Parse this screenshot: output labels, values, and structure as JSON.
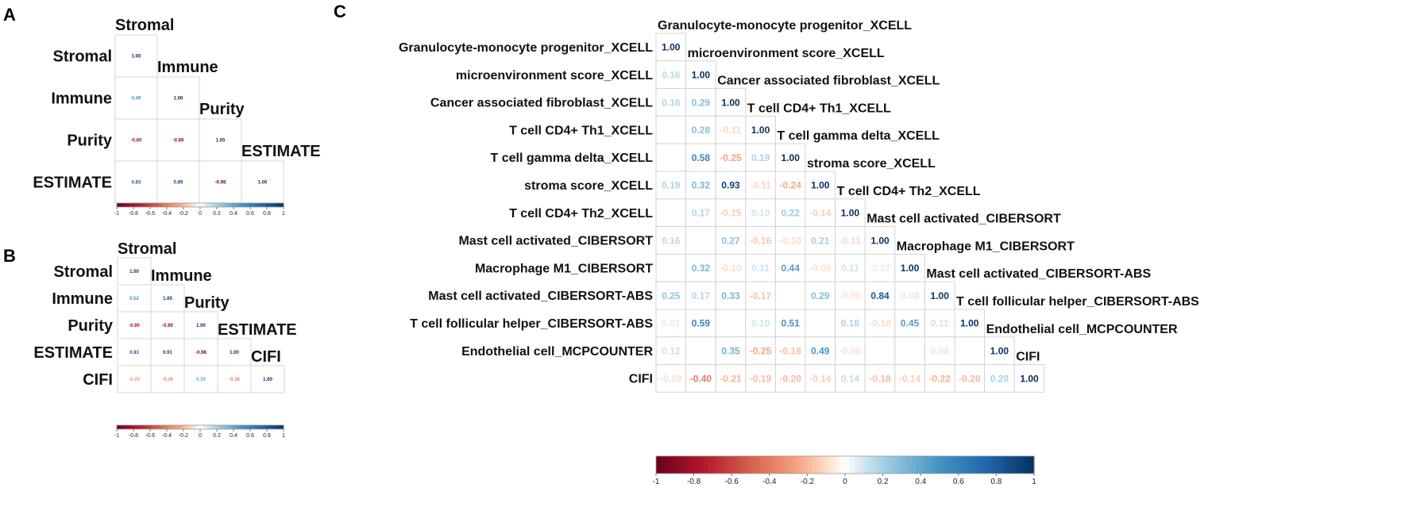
{
  "panel_letters": [
    "A",
    "B",
    "C"
  ],
  "colors": {
    "negative": "#67001f",
    "zero": "#ffffff",
    "positive": "#053061"
  },
  "chart_data": [
    {
      "type": "heatmap",
      "panel": "A",
      "variables": [
        "Stromal",
        "Immune",
        "Purity",
        "ESTIMATE"
      ],
      "matrix": [
        [
          1.0,
          null,
          null,
          null
        ],
        [
          0.49,
          1.0,
          null,
          null
        ],
        [
          -0.8,
          -0.89,
          1.0,
          null
        ],
        [
          0.83,
          0.89,
          -0.98,
          1.0
        ]
      ],
      "value_labels": [
        [
          "1.00",
          "",
          "",
          ""
        ],
        [
          "0.49",
          "1.00",
          "",
          ""
        ],
        [
          "-0.80",
          "-0.89",
          "1.00",
          ""
        ],
        [
          "0.83",
          "0.89",
          "-0.98",
          "1.00"
        ]
      ],
      "color_range": [
        -1,
        1
      ],
      "colorbar_ticks": [
        "-1",
        "-0.8",
        "-0.6",
        "-0.4",
        "-0.2",
        "0",
        "0.2",
        "0.4",
        "0.6",
        "0.8",
        "1"
      ]
    },
    {
      "type": "heatmap",
      "panel": "B",
      "variables": [
        "Stromal",
        "Immune",
        "Purity",
        "ESTIMATE",
        "CIFI"
      ],
      "matrix": [
        [
          1.0,
          null,
          null,
          null,
          null
        ],
        [
          0.52,
          1.0,
          null,
          null,
          null
        ],
        [
          -0.8,
          -0.9,
          1.0,
          null,
          null
        ],
        [
          0.83,
          0.91,
          -0.98,
          1.0,
          null
        ],
        [
          -0.29,
          -0.36,
          0.39,
          -0.36,
          1.0
        ]
      ],
      "value_labels": [
        [
          "1.00",
          "",
          "",
          "",
          ""
        ],
        [
          "0.52",
          "1.00",
          "",
          "",
          ""
        ],
        [
          "-0.80",
          "-0.90",
          "1.00",
          "",
          ""
        ],
        [
          "0.83",
          "0.91",
          "-0.98",
          "1.00",
          ""
        ],
        [
          "-0.29",
          "-0.36",
          "0.39",
          "-0.36",
          "1.00"
        ]
      ],
      "color_range": [
        -1,
        1
      ],
      "colorbar_ticks": [
        "-1",
        "-0.8",
        "-0.6",
        "-0.4",
        "-0.2",
        "0",
        "0.2",
        "0.4",
        "0.6",
        "0.8",
        "1"
      ]
    },
    {
      "type": "heatmap",
      "panel": "C",
      "variables": [
        "Granulocyte-monocyte progenitor_XCELL",
        "microenvironment score_XCELL",
        "Cancer associated fibroblast_XCELL",
        "T cell CD4+ Th1_XCELL",
        "T cell gamma delta_XCELL",
        "stroma score_XCELL",
        "T cell CD4+ Th2_XCELL",
        "Mast cell activated_CIBERSORT",
        "Macrophage M1_CIBERSORT",
        "Mast cell activated_CIBERSORT-ABS",
        "T cell follicular helper_CIBERSORT-ABS",
        "Endothelial cell_MCPCOUNTER",
        "CIFI"
      ],
      "matrix": [
        [
          1.0,
          null,
          null,
          null,
          null,
          null,
          null,
          null,
          null,
          null,
          null,
          null,
          null
        ],
        [
          0.16,
          1.0,
          null,
          null,
          null,
          null,
          null,
          null,
          null,
          null,
          null,
          null,
          null
        ],
        [
          0.18,
          0.29,
          1.0,
          null,
          null,
          null,
          null,
          null,
          null,
          null,
          null,
          null,
          null
        ],
        [
          null,
          0.28,
          -0.11,
          1.0,
          null,
          null,
          null,
          null,
          null,
          null,
          null,
          null,
          null
        ],
        [
          0.02,
          0.58,
          -0.25,
          0.19,
          1.0,
          null,
          null,
          null,
          null,
          null,
          null,
          null,
          null
        ],
        [
          0.19,
          0.32,
          0.93,
          -0.11,
          -0.24,
          1.0,
          null,
          null,
          null,
          null,
          null,
          null,
          null
        ],
        [
          0.02,
          0.17,
          -0.15,
          0.1,
          0.22,
          -0.14,
          1.0,
          null,
          null,
          null,
          null,
          null,
          null
        ],
        [
          0.16,
          -0.03,
          0.27,
          -0.16,
          -0.1,
          0.21,
          -0.11,
          1.0,
          null,
          null,
          null,
          null,
          null
        ],
        [
          0.04,
          0.32,
          -0.1,
          0.11,
          0.44,
          -0.09,
          0.11,
          -0.07,
          1.0,
          null,
          null,
          null,
          null
        ],
        [
          0.25,
          0.17,
          0.33,
          -0.17,
          0.02,
          0.29,
          -0.08,
          0.84,
          0.08,
          1.0,
          null,
          null,
          null
        ],
        [
          0.07,
          0.59,
          0.01,
          0.1,
          0.51,
          0.02,
          0.18,
          -0.1,
          0.45,
          0.11,
          1.0,
          null,
          null
        ],
        [
          0.12,
          0.03,
          0.35,
          -0.25,
          -0.18,
          0.49,
          -0.08,
          0.01,
          0.01,
          0.08,
          0.02,
          1.0,
          null
        ],
        [
          -0.09,
          -0.4,
          -0.21,
          -0.19,
          -0.2,
          -0.14,
          0.14,
          -0.18,
          -0.14,
          -0.22,
          -0.2,
          0.2,
          1.0
        ]
      ],
      "value_labels": [
        [
          "1.00",
          "",
          "",
          "",
          "",
          "",
          "",
          "",
          "",
          "",
          "",
          "",
          ""
        ],
        [
          "0.16",
          "1.00",
          "",
          "",
          "",
          "",
          "",
          "",
          "",
          "",
          "",
          "",
          ""
        ],
        [
          "0.18",
          "0.29",
          "1.00",
          "",
          "",
          "",
          "",
          "",
          "",
          "",
          "",
          "",
          ""
        ],
        [
          "",
          "0.28",
          "-0.11",
          "1.00",
          "",
          "",
          "",
          "",
          "",
          "",
          "",
          "",
          ""
        ],
        [
          "",
          "0.58",
          "-0.25",
          "0.19",
          "1.00",
          "",
          "",
          "",
          "",
          "",
          "",
          "",
          ""
        ],
        [
          "0.19",
          "0.32",
          "0.93",
          "-0.11",
          "-0.24",
          "1.00",
          "",
          "",
          "",
          "",
          "",
          "",
          ""
        ],
        [
          "",
          "0.17",
          "-0.15",
          "0.10",
          "0.22",
          "-0.14",
          "1.00",
          "",
          "",
          "",
          "",
          "",
          ""
        ],
        [
          "0.16",
          "",
          "0.27",
          "-0.16",
          "-0.10",
          "0.21",
          "-0.11",
          "1.00",
          "",
          "",
          "",
          "",
          ""
        ],
        [
          "",
          "0.32",
          "-0.10",
          "0.11",
          "0.44",
          "-0.09",
          "0.11",
          "-0.07",
          "1.00",
          "",
          "",
          "",
          ""
        ],
        [
          "0.25",
          "0.17",
          "0.33",
          "-0.17",
          "",
          "0.29",
          "-0.08",
          "0.84",
          "0.08",
          "1.00",
          "",
          "",
          ""
        ],
        [
          "0.07",
          "0.59",
          "",
          "0.10",
          "0.51",
          "",
          "0.18",
          "-0.10",
          "0.45",
          "0.11",
          "1.00",
          "",
          ""
        ],
        [
          "0.12",
          "",
          "0.35",
          "-0.25",
          "-0.18",
          "0.49",
          "-0.08",
          "",
          "",
          "0.08",
          "",
          "1.00",
          ""
        ],
        [
          "-0.09",
          "-0.40",
          "-0.21",
          "-0.19",
          "-0.20",
          "-0.14",
          "0.14",
          "-0.18",
          "-0.14",
          "-0.22",
          "-0.20",
          "0.20",
          "1.00"
        ]
      ],
      "color_range": [
        -1,
        1
      ],
      "colorbar_ticks": [
        "-1",
        "-0.8",
        "-0.6",
        "-0.4",
        "-0.2",
        "0",
        "0.2",
        "0.4",
        "0.6",
        "0.8",
        "1"
      ]
    }
  ]
}
